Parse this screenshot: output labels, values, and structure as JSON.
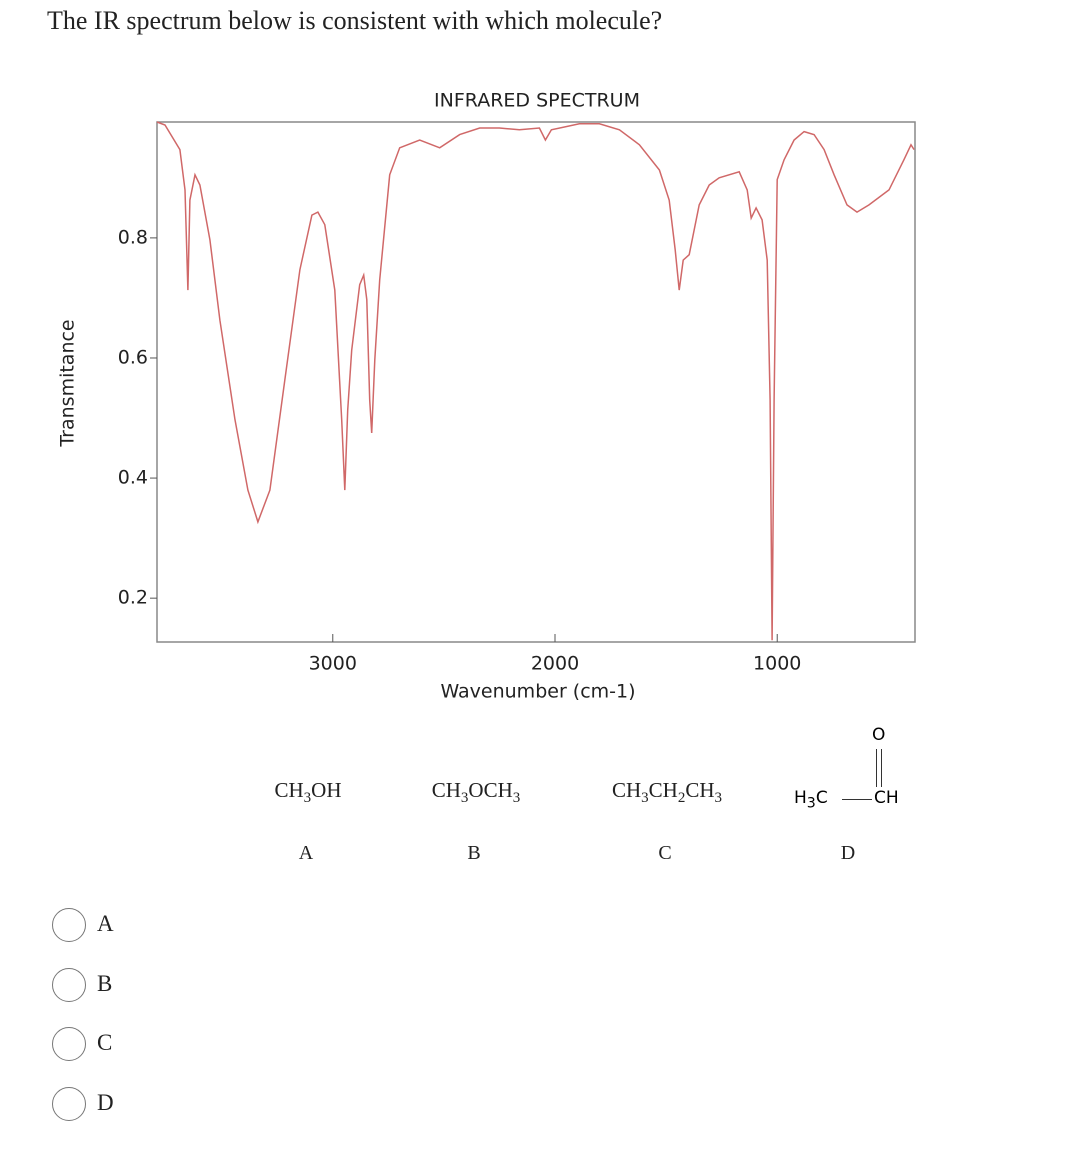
{
  "question": "The IR spectrum below is consistent with which molecule?",
  "chart_data": {
    "type": "line",
    "title": "INFRARED SPECTRUM",
    "x_label": "Wavenumber (cm-1)",
    "y_label": "Transmitance",
    "color": "#d06868",
    "x": [
      3791,
      3755,
      3688,
      3665,
      3652,
      3643,
      3620,
      3598,
      3553,
      3508,
      3440,
      3382,
      3337,
      3283,
      3216,
      3148,
      3094,
      3067,
      3036,
      2991,
      2960,
      2946,
      2933,
      2915,
      2879,
      2861,
      2847,
      2834,
      2825,
      2811,
      2789,
      2744,
      2699,
      2609,
      2519,
      2429,
      2339,
      2250,
      2160,
      2070,
      2043,
      2016,
      1890,
      1800,
      1710,
      1620,
      1530,
      1486,
      1459,
      1441,
      1423,
      1396,
      1351,
      1306,
      1261,
      1171,
      1135,
      1117,
      1095,
      1068,
      1045,
      1032,
      1023,
      1014,
      1000,
      969,
      924,
      879,
      834,
      789,
      744,
      686,
      641,
      587,
      497,
      430,
      398,
      384
    ],
    "values": [
      0.993,
      0.988,
      0.947,
      0.88,
      0.713,
      0.863,
      0.905,
      0.888,
      0.797,
      0.663,
      0.497,
      0.38,
      0.327,
      0.38,
      0.563,
      0.747,
      0.838,
      0.843,
      0.822,
      0.713,
      0.497,
      0.38,
      0.513,
      0.613,
      0.722,
      0.738,
      0.697,
      0.53,
      0.475,
      0.597,
      0.73,
      0.905,
      0.95,
      0.963,
      0.95,
      0.972,
      0.983,
      0.983,
      0.98,
      0.983,
      0.963,
      0.98,
      0.99,
      0.99,
      0.98,
      0.955,
      0.913,
      0.863,
      0.78,
      0.713,
      0.763,
      0.772,
      0.855,
      0.888,
      0.9,
      0.91,
      0.88,
      0.833,
      0.85,
      0.83,
      0.763,
      0.53,
      0.13,
      0.53,
      0.897,
      0.93,
      0.963,
      0.977,
      0.972,
      0.947,
      0.905,
      0.855,
      0.843,
      0.855,
      0.88,
      0.93,
      0.955,
      0.947
    ],
    "xlim": [
      3791,
      380
    ],
    "ylim": [
      0.127,
      0.993
    ],
    "xticks": [
      3000,
      2000,
      1000
    ],
    "yticks": [
      0.2,
      0.4,
      0.6,
      0.8
    ]
  },
  "molecules": [
    {
      "formula": [
        "CH",
        "3",
        "OH"
      ],
      "label": "A"
    },
    {
      "formula": [
        "CH",
        "3",
        "OCH",
        "3"
      ],
      "label": "B"
    },
    {
      "formula": [
        "CH",
        "3",
        "CH",
        "2",
        "CH",
        "3"
      ],
      "label": "C"
    },
    {
      "structure": {
        "left": [
          "H",
          "3",
          "C"
        ],
        "top": "O",
        "right": "CH"
      },
      "label": "D"
    }
  ],
  "options": [
    "A",
    "B",
    "C",
    "D"
  ]
}
